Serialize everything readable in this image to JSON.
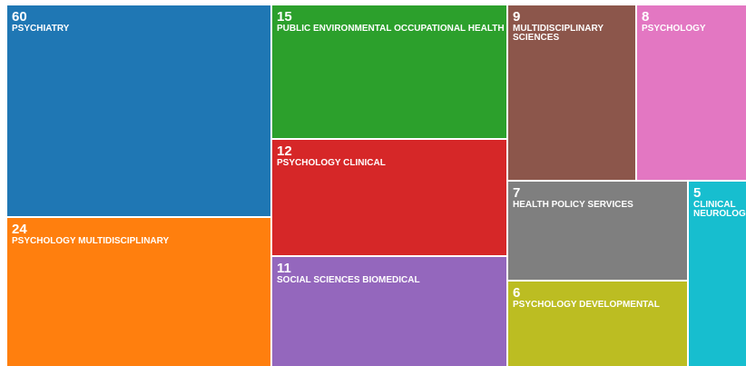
{
  "chart_data": {
    "type": "treemap",
    "categories": [
      "PSYCHIATRY",
      "PSYCHOLOGY MULTIDISCIPLINARY",
      "PUBLIC ENVIRONMENTAL OCCUPATIONAL HEALTH",
      "PSYCHOLOGY CLINICAL",
      "SOCIAL SCIENCES BIOMEDICAL",
      "MULTIDISCIPLINARY SCIENCES",
      "PSYCHOLOGY",
      "HEALTH POLICY SERVICES",
      "PSYCHOLOGY DEVELOPMENTAL",
      "CLINICAL NEUROLOGY"
    ],
    "values": [
      60,
      24,
      15,
      12,
      11,
      9,
      8,
      7,
      6,
      5
    ],
    "colors": [
      "#1f77b4",
      "#ff7f0e",
      "#2ca02c",
      "#d62728",
      "#9467bd",
      "#8c564b",
      "#e377c2",
      "#7f7f7f",
      "#bcbd22",
      "#17becf"
    ]
  }
}
